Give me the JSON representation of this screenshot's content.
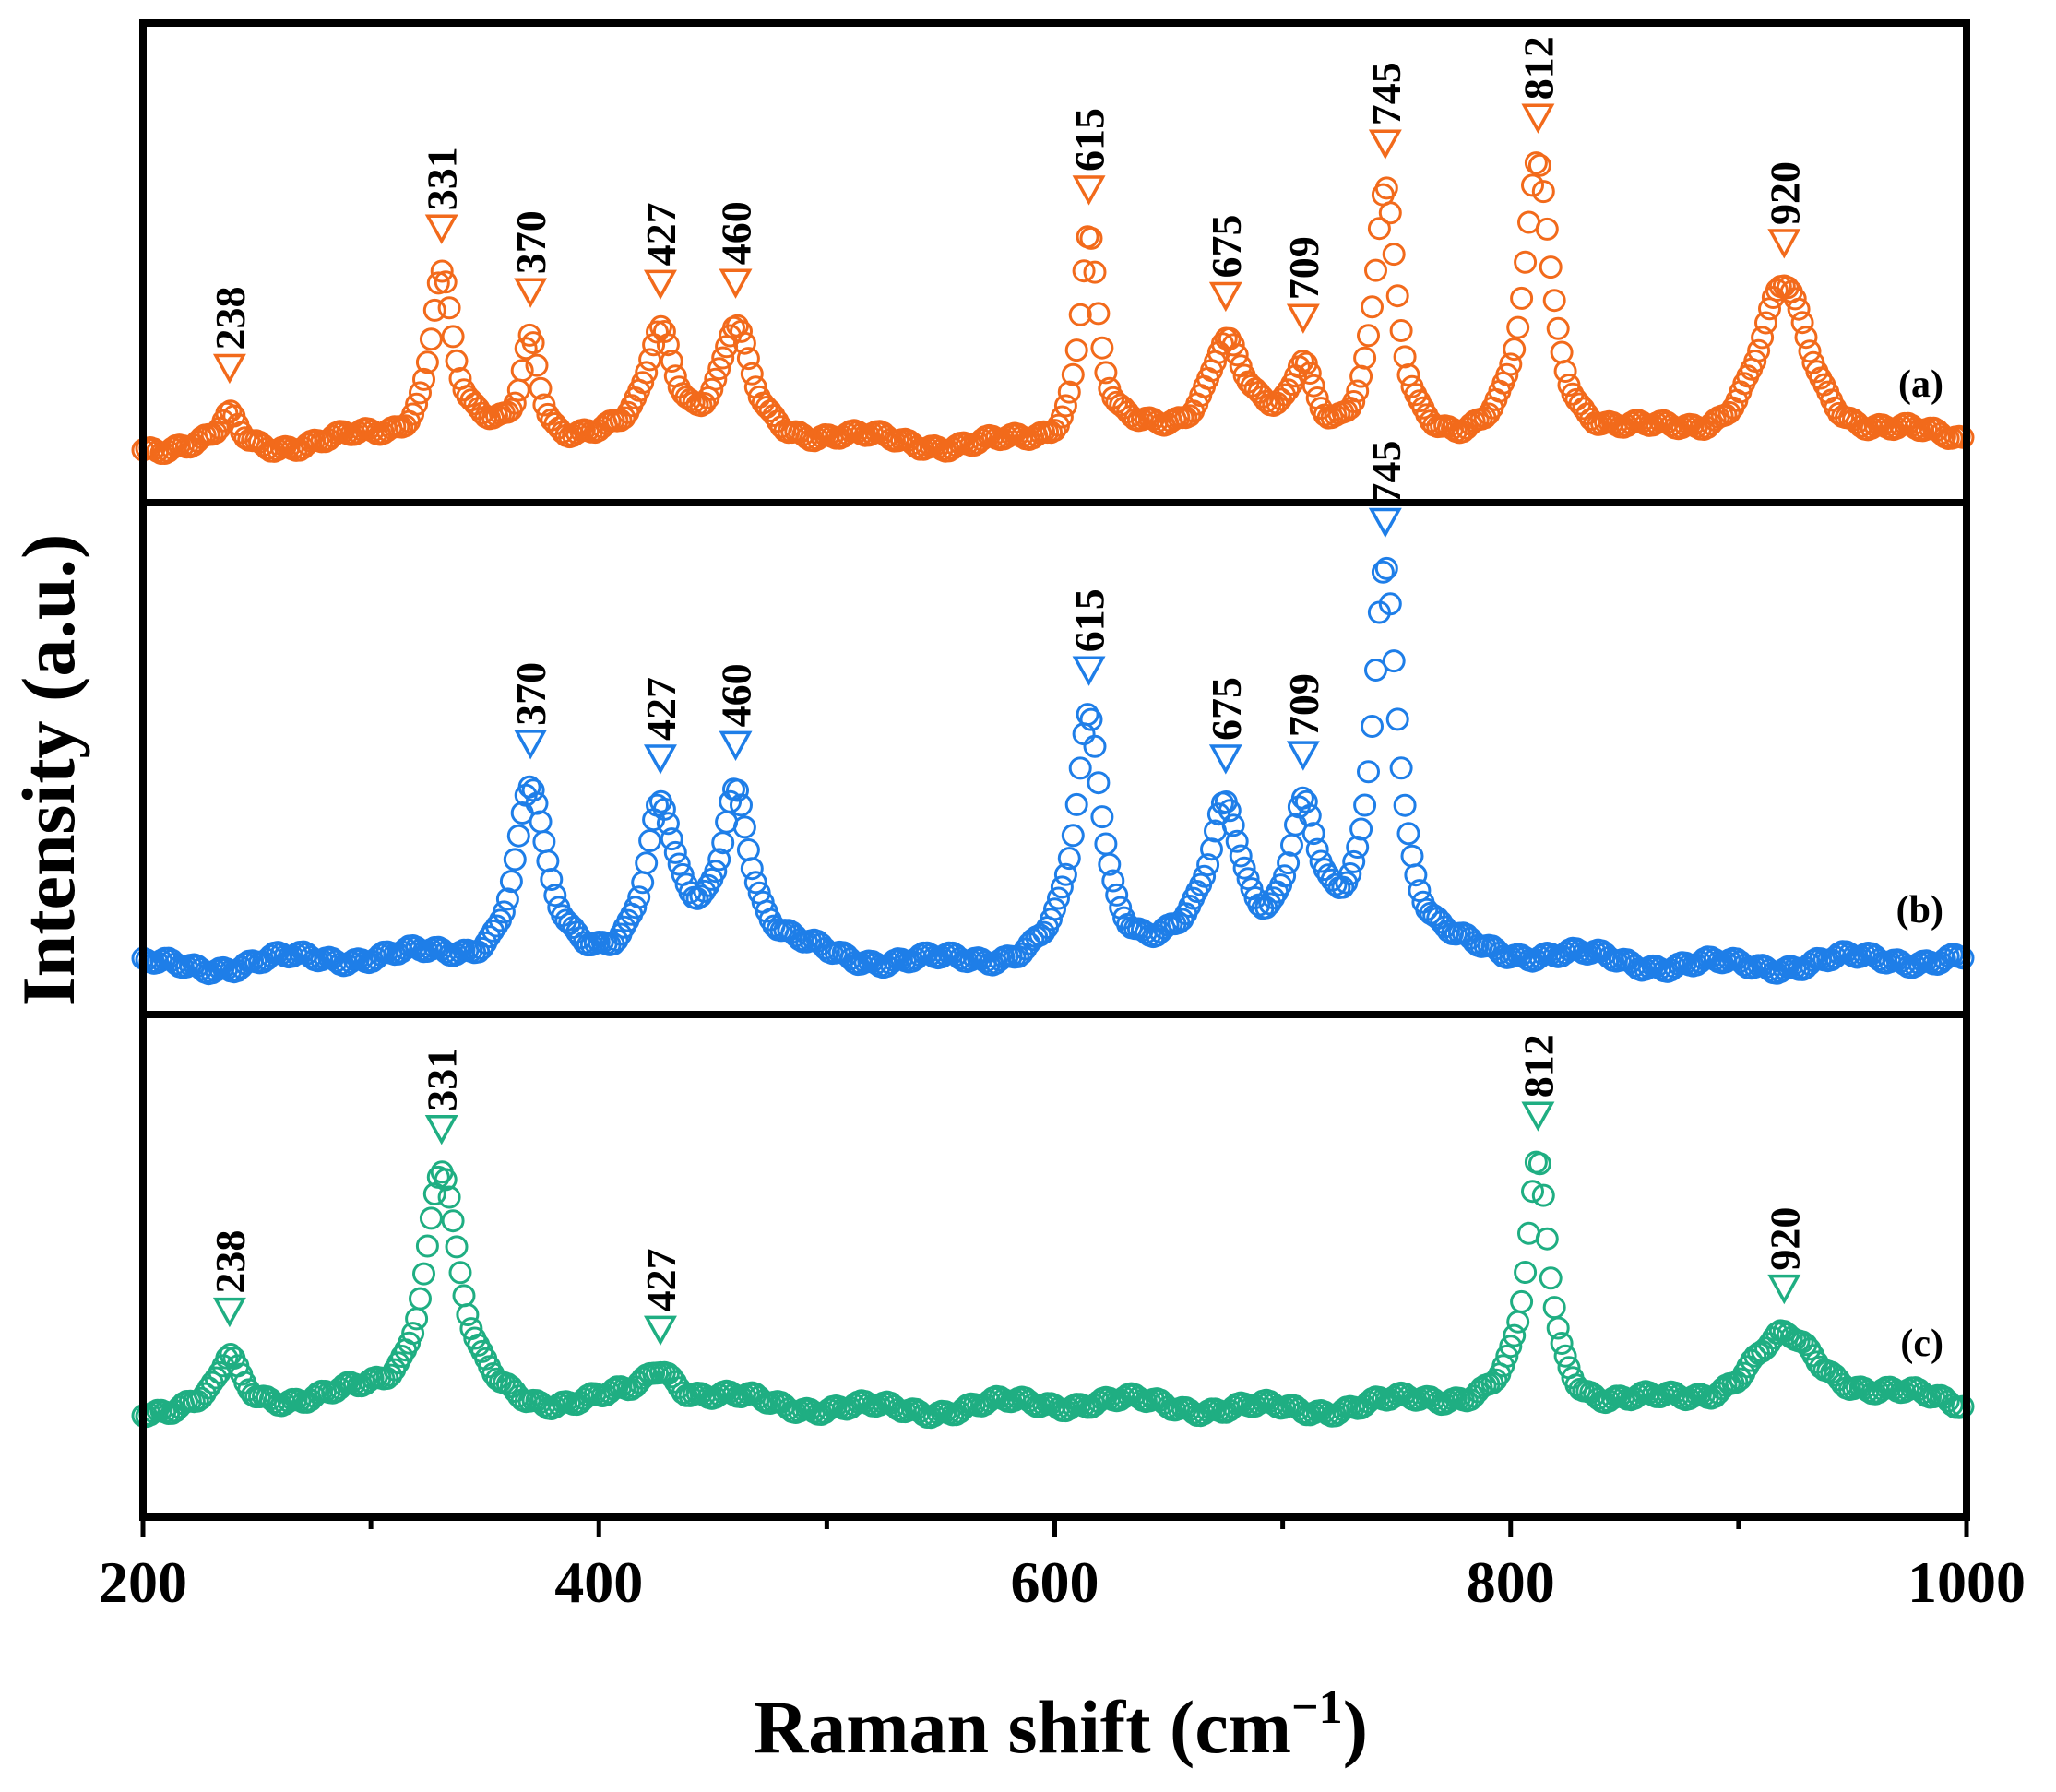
{
  "chart_data": {
    "type": "scatter",
    "xlabel": "Raman shift (cm",
    "xlabel_sup": "−1",
    "xlabel_close": ")",
    "ylabel": "Intensity (a.u.)",
    "xlim": [
      200,
      1000
    ],
    "xticks": [
      200,
      400,
      600,
      800,
      1000
    ],
    "xtick_labels": [
      "200",
      "400",
      "600",
      "800",
      "1000"
    ],
    "panels": [
      {
        "label": "(a)",
        "color": "#f26a1b",
        "baseline": 0.12,
        "peaks": [
          {
            "x": 238,
            "h": 0.06,
            "w": 5
          },
          {
            "x": 331,
            "h": 0.35,
            "w": 6
          },
          {
            "x": 370,
            "h": 0.22,
            "w": 5
          },
          {
            "x": 427,
            "h": 0.24,
            "w": 8
          },
          {
            "x": 460,
            "h": 0.22,
            "w": 8
          },
          {
            "x": 615,
            "h": 0.44,
            "w": 5
          },
          {
            "x": 675,
            "h": 0.2,
            "w": 10
          },
          {
            "x": 709,
            "h": 0.15,
            "w": 6
          },
          {
            "x": 745,
            "h": 0.52,
            "w": 6
          },
          {
            "x": 812,
            "h": 0.57,
            "w": 7
          },
          {
            "x": 920,
            "h": 0.33,
            "w": 14
          }
        ],
        "annotations": [
          "238",
          "331",
          "370",
          "427",
          "460",
          "615",
          "675",
          "709",
          "745",
          "812",
          "920"
        ]
      },
      {
        "label": "(b)",
        "color": "#1e7ee8",
        "baseline": 0.1,
        "peaks": [
          {
            "x": 370,
            "h": 0.34,
            "w": 8
          },
          {
            "x": 427,
            "h": 0.28,
            "w": 8
          },
          {
            "x": 460,
            "h": 0.32,
            "w": 8
          },
          {
            "x": 615,
            "h": 0.46,
            "w": 7
          },
          {
            "x": 675,
            "h": 0.28,
            "w": 9
          },
          {
            "x": 709,
            "h": 0.27,
            "w": 8
          },
          {
            "x": 745,
            "h": 0.77,
            "w": 7
          }
        ],
        "annotations": [
          "370",
          "427",
          "460",
          "615",
          "675",
          "709",
          "745"
        ]
      },
      {
        "label": "(c)",
        "color": "#1fae82",
        "baseline": 0.22,
        "peaks": [
          {
            "x": 238,
            "h": 0.09,
            "w": 5
          },
          {
            "x": 331,
            "h": 0.48,
            "w": 9
          },
          {
            "x": 427,
            "h": 0.07,
            "w": 9
          },
          {
            "x": 812,
            "h": 0.47,
            "w": 6
          },
          {
            "x": 920,
            "h": 0.13,
            "w": 20
          }
        ],
        "annotations": [
          "238",
          "331",
          "427",
          "812",
          "920"
        ]
      }
    ]
  }
}
